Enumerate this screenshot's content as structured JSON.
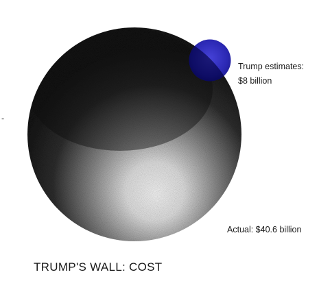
{
  "chart_data": {
    "type": "bubble",
    "title": "TRUMP'S WALL: COST",
    "unit": "billion",
    "items": [
      {
        "id": "actual",
        "value": 40.6,
        "label": "Actual: $40.6 billion",
        "color": "#3a3a3a"
      },
      {
        "id": "estimate",
        "value": 8,
        "label_lines": [
          "Trump estimates:",
          "$8 billion"
        ],
        "color": "#1c1aa6"
      }
    ],
    "stray_mark": "-"
  }
}
